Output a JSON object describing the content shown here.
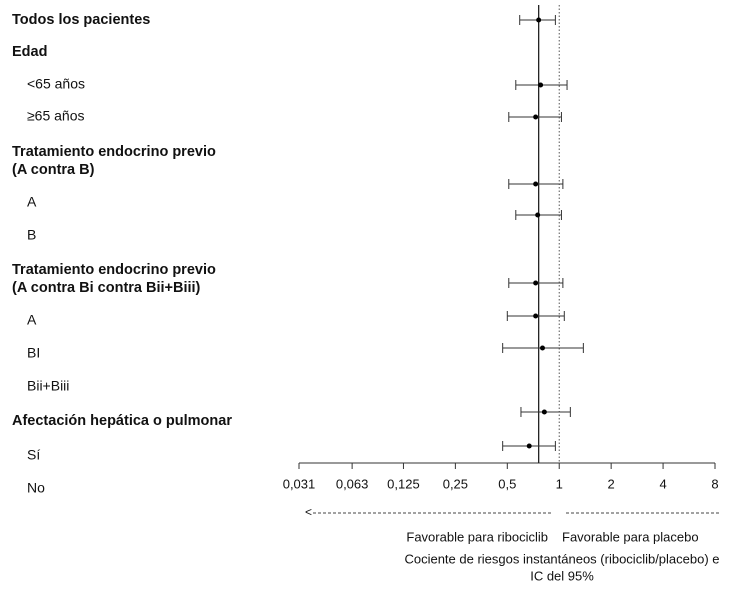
{
  "chart_data": {
    "type": "forest",
    "xscale": "log",
    "xlim": [
      0.031,
      8
    ],
    "xticks": [
      {
        "value": 0.031,
        "label": "0,031"
      },
      {
        "value": 0.063,
        "label": "0,063"
      },
      {
        "value": 0.125,
        "label": "0,125"
      },
      {
        "value": 0.25,
        "label": "0,25"
      },
      {
        "value": 0.5,
        "label": "0,5"
      },
      1,
      2,
      4,
      8
    ],
    "reference": 1,
    "rows": [
      {
        "label": [
          "Todos los pacientes"
        ],
        "header": true,
        "hr": 0.76,
        "lo": 0.59,
        "hi": 0.95
      },
      {
        "label": [
          "Edad"
        ],
        "header": true,
        "hr": null,
        "lo": null,
        "hi": null
      },
      {
        "label": [
          "<65 años"
        ],
        "header": false,
        "hr": 0.78,
        "lo": 0.56,
        "hi": 1.11
      },
      {
        "label": [
          "≥65 años"
        ],
        "header": false,
        "hr": 0.73,
        "lo": 0.51,
        "hi": 1.03
      },
      {
        "label": [
          "Tratamiento endocrino previo",
          "(A contra B)"
        ],
        "header": true,
        "hr": 0.73,
        "lo": 0.51,
        "hi": 1.05
      },
      {
        "label": [
          "A"
        ],
        "header": false,
        "hr": 0.75,
        "lo": 0.56,
        "hi": 1.03
      },
      {
        "label": [
          "B"
        ],
        "header": false,
        "hr": null,
        "lo": null,
        "hi": null
      },
      {
        "label": [
          "Tratamiento endocrino previo",
          "(A contra Bi contra Bii+Biii)"
        ],
        "header": true,
        "hr": 0.73,
        "lo": 0.51,
        "hi": 1.05
      },
      {
        "label": [
          "A"
        ],
        "header": false,
        "hr": 0.73,
        "lo": 0.5,
        "hi": 1.07
      },
      {
        "label": [
          "BI"
        ],
        "header": false,
        "hr": 0.8,
        "lo": 0.47,
        "hi": 1.38
      },
      {
        "label": [
          "Bii+Biii"
        ],
        "header": false,
        "hr": null,
        "lo": null,
        "hi": null
      },
      {
        "label": [
          "Afectación hepática o pulmonar"
        ],
        "header": true,
        "hr": 0.82,
        "lo": 0.6,
        "hi": 1.16
      },
      {
        "label": [
          "Sí"
        ],
        "header": false,
        "hr": 0.67,
        "lo": 0.47,
        "hi": 0.95
      },
      {
        "label": [
          "No"
        ],
        "header": false,
        "hr": null,
        "lo": null,
        "hi": null
      }
    ],
    "favor_left": "Favorable para ribociclib",
    "favor_right": "Favorable para placebo",
    "xlabel": [
      "Cociente de riesgos instantáneos (ribociclib/placebo) e",
      "IC del 95%"
    ]
  }
}
